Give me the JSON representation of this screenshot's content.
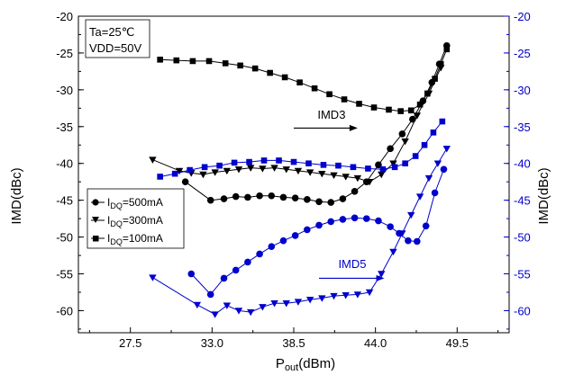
{
  "chart_data": {
    "type": "scatter",
    "xlabel_main": "P",
    "xlabel_sub": "out",
    "xlabel_unit": "(dBm)",
    "ylabel_left": "IMD(dBc)",
    "ylabel_right": "IMD(dBc)",
    "xlim": [
      24.0,
      53.0
    ],
    "ylim": [
      -63,
      -20
    ],
    "x_ticks": [
      "27.5",
      "33.0",
      "38.5",
      "44.0",
      "49.5"
    ],
    "y_ticks": [
      "-20",
      "-25",
      "-30",
      "-35",
      "-40",
      "-45",
      "-50",
      "-55",
      "-60"
    ],
    "grid": false,
    "conditions": [
      "Ta=25℃",
      "VDD=50V"
    ],
    "annotations": [
      {
        "text": "IMD3",
        "x": 40.1,
        "y": -33.9,
        "arrow_from": [
          38.5,
          -35.2
        ],
        "arrow_to": [
          42.8,
          -35.2
        ],
        "color": "#000000"
      },
      {
        "text": "IMD5",
        "x": 41.5,
        "y": -54.2,
        "arrow_from": [
          40.2,
          -55.6
        ],
        "arrow_to": [
          44.6,
          -55.6
        ],
        "color": "#0000cc"
      }
    ],
    "legend": {
      "placement": "left",
      "entries": [
        {
          "prefix": "I",
          "sub": "DQ",
          "suffix": "=500mA",
          "marker": "circle"
        },
        {
          "prefix": "I",
          "sub": "DQ",
          "suffix": "=300mA",
          "marker": "triangle-down"
        },
        {
          "prefix": "I",
          "sub": "DQ",
          "suffix": "=100mA",
          "marker": "square"
        }
      ]
    },
    "series": [
      {
        "axis": "left",
        "color": "#000000",
        "marker": "circle",
        "x": [
          31.2,
          32.9,
          33.8,
          34.6,
          35.4,
          36.2,
          37.0,
          37.8,
          38.6,
          39.4,
          40.2,
          41.0,
          41.8,
          42.6,
          43.4,
          44.2,
          45.0,
          45.8,
          46.5,
          47.2,
          47.8,
          48.3,
          48.8
        ],
        "y": [
          -42.5,
          -45.0,
          -44.8,
          -44.5,
          -44.6,
          -44.4,
          -44.4,
          -44.6,
          -44.7,
          -44.9,
          -45.2,
          -45.3,
          -44.8,
          -43.8,
          -42.5,
          -40.2,
          -38.0,
          -36.0,
          -34.0,
          -31.5,
          -29.0,
          -26.5,
          -24.0
        ]
      },
      {
        "axis": "left",
        "color": "#000000",
        "marker": "triangle-down",
        "x": [
          29.0,
          30.8,
          31.6,
          32.4,
          33.2,
          34.0,
          34.8,
          35.6,
          36.4,
          37.2,
          38.0,
          38.8,
          39.6,
          40.4,
          41.2,
          42.0,
          42.8,
          43.6,
          44.4,
          45.2,
          46.0,
          46.8,
          47.6,
          48.4
        ],
        "y": [
          -39.5,
          -41.0,
          -41.3,
          -41.5,
          -41.2,
          -41.0,
          -40.8,
          -40.6,
          -40.7,
          -40.6,
          -40.8,
          -41.0,
          -41.2,
          -41.4,
          -41.6,
          -41.8,
          -42.0,
          -42.5,
          -41.5,
          -40.0,
          -37.0,
          -33.5,
          -30.5,
          -27.0
        ]
      },
      {
        "axis": "left",
        "color": "#000000",
        "marker": "square",
        "x": [
          29.5,
          30.6,
          31.7,
          32.8,
          33.9,
          34.9,
          35.9,
          36.9,
          37.9,
          38.9,
          39.9,
          40.9,
          41.9,
          42.9,
          43.9,
          44.9,
          45.7,
          46.4,
          47.0,
          47.5,
          48.0,
          48.4,
          48.8
        ],
        "y": [
          -25.9,
          -26.0,
          -26.1,
          -26.1,
          -26.4,
          -26.7,
          -27.1,
          -27.7,
          -28.3,
          -29.0,
          -29.8,
          -30.6,
          -31.3,
          -31.9,
          -32.4,
          -32.7,
          -32.9,
          -32.8,
          -32.0,
          -30.5,
          -28.5,
          -26.5,
          -24.5
        ]
      },
      {
        "axis": "right",
        "color": "#0000cc",
        "marker": "circle",
        "x": [
          31.6,
          32.9,
          33.8,
          34.6,
          35.4,
          36.2,
          37.0,
          37.8,
          38.6,
          39.4,
          40.2,
          41.0,
          41.8,
          42.6,
          43.4,
          44.2,
          45.0,
          45.6,
          46.2,
          46.8,
          47.4,
          48.0,
          48.6
        ],
        "y": [
          -55.0,
          -57.8,
          -55.6,
          -54.5,
          -53.4,
          -52.3,
          -51.3,
          -50.5,
          -49.8,
          -49.0,
          -48.4,
          -47.9,
          -47.6,
          -47.4,
          -47.5,
          -47.8,
          -48.6,
          -49.5,
          -50.5,
          -50.6,
          -48.5,
          -44.0,
          -40.8
        ]
      },
      {
        "axis": "right",
        "color": "#0000cc",
        "marker": "triangle-down",
        "x": [
          29.0,
          32.0,
          33.2,
          34.0,
          34.8,
          35.6,
          36.4,
          37.2,
          38.0,
          38.8,
          39.6,
          40.4,
          41.2,
          42.0,
          42.8,
          43.6,
          44.4,
          45.2,
          45.8,
          46.4,
          47.0,
          47.6,
          48.2,
          48.8
        ],
        "y": [
          -55.5,
          -59.2,
          -60.5,
          -59.3,
          -60.0,
          -60.2,
          -59.5,
          -59.0,
          -59.0,
          -58.8,
          -58.5,
          -58.3,
          -58.0,
          -57.9,
          -57.8,
          -57.5,
          -55.0,
          -52.0,
          -49.5,
          -47.0,
          -44.5,
          -42.0,
          -40.0,
          -38.0
        ]
      },
      {
        "axis": "right",
        "color": "#0000cc",
        "marker": "square",
        "x": [
          29.5,
          30.5,
          31.5,
          32.5,
          33.5,
          34.5,
          35.5,
          36.5,
          37.5,
          38.5,
          39.5,
          40.5,
          41.5,
          42.5,
          43.5,
          44.5,
          45.3,
          46.0,
          46.7,
          47.3,
          47.9,
          48.5
        ],
        "y": [
          -41.8,
          -41.4,
          -40.9,
          -40.5,
          -40.3,
          -39.9,
          -39.8,
          -39.6,
          -39.6,
          -39.8,
          -40.0,
          -40.2,
          -40.3,
          -40.5,
          -40.7,
          -40.8,
          -40.5,
          -40.0,
          -39.0,
          -37.5,
          -35.8,
          -34.3
        ]
      }
    ]
  }
}
